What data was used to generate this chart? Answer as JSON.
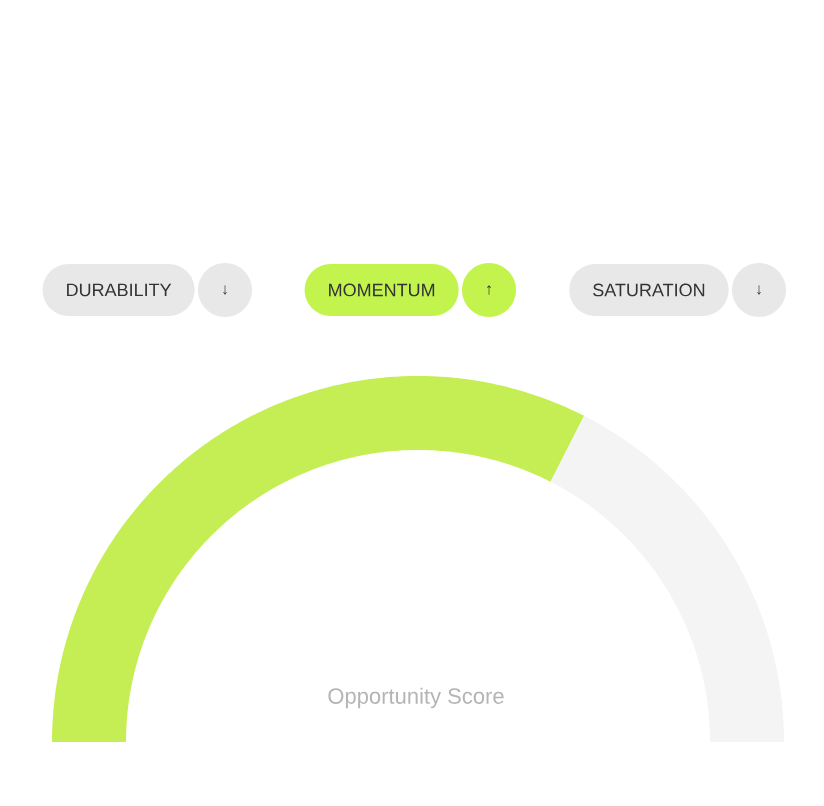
{
  "chart_data": {
    "type": "donut",
    "title": "Opportunity Score",
    "categories": [
      null,
      null
    ],
    "values": [
      65,
      35
    ],
    "colors": [
      "#c5ee55",
      "#f4f4f4"
    ],
    "annotations": [
      "DURABILITY",
      "↓",
      "MOMENTUM",
      "↑",
      "SATURATION",
      "↓"
    ]
  }
}
